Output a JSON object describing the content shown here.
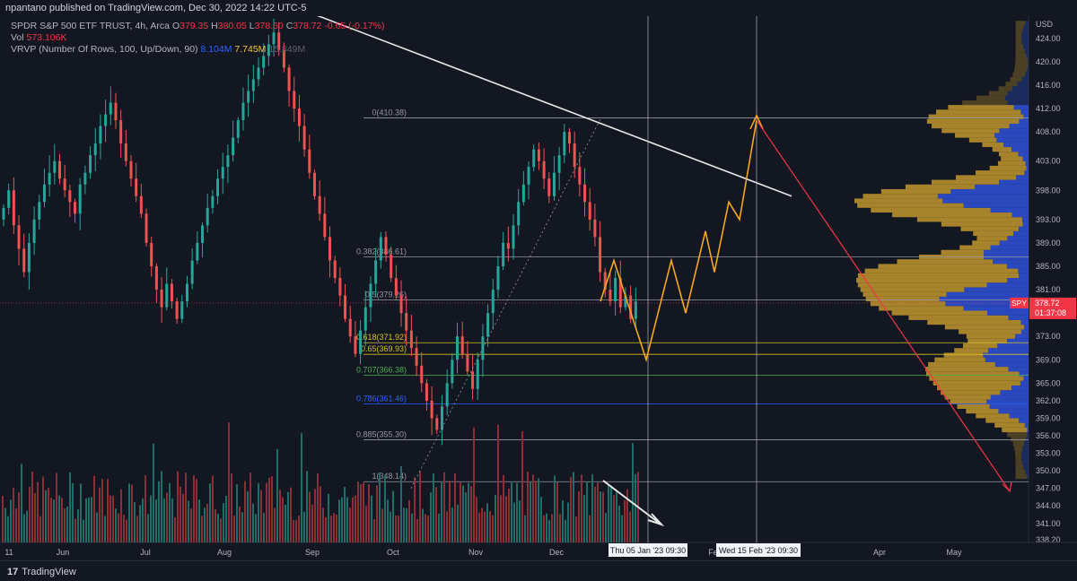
{
  "header": {
    "published": "npantano published on TradingView.com, Dec 30, 2022 14:22 UTC-5"
  },
  "legend": {
    "symbol": "SPDR S&P 500 ETF TRUST, 4h, Arca",
    "o_label": "O",
    "o": "379.35",
    "h_label": "H",
    "h": "380.05",
    "l_label": "L",
    "l": "378.60",
    "c_label": "C",
    "c": "378.72",
    "change": "-0.65 (-0.17%)",
    "vol_label": "Vol",
    "vol": "573.106K",
    "vrvp_label": "VRVP (Number Of Rows, 100, Up/Down, 90)",
    "vrvp_up": "8.104M",
    "vrvp_down": "7.745M",
    "vrvp_total": "15.849M"
  },
  "footer": {
    "brand": "TradingView",
    "logo_mark": "17"
  },
  "colors": {
    "background": "#131722",
    "up": "#26a69a",
    "down": "#ef5350",
    "vol_up": "#1f6d66",
    "vol_down": "#8c2f35",
    "vp_up": "#2d4fcf",
    "vp_down": "#b8902c",
    "trendline": "#e8e8e8",
    "projection": "#f5a623",
    "target": "#f23645"
  },
  "chart_data": {
    "type": "candlestick",
    "symbol": "SPY",
    "timeframe": "4h",
    "y_currency": "USD",
    "ylim": [
      338.2,
      427.5
    ],
    "y_ticks": [
      "424.00",
      "420.00",
      "416.00",
      "412.00",
      "408.00",
      "403.00",
      "398.00",
      "393.00",
      "389.00",
      "385.00",
      "381.00",
      "377.00",
      "373.00",
      "369.00",
      "365.00",
      "362.00",
      "359.00",
      "356.00",
      "353.00",
      "350.00",
      "347.00",
      "344.00",
      "341.00",
      "338.20"
    ],
    "x_ticks": [
      "11",
      "Jun",
      "Jul",
      "Aug",
      "Sep",
      "Oct",
      "Nov",
      "Dec",
      "Feb",
      "Apr",
      "May"
    ],
    "last_price": {
      "symbol": "SPY",
      "value": "378.72",
      "countdown": "01:37:08"
    },
    "crosshair_labels": [
      "Thu 05 Jan '23   09:30",
      "Wed 15 Feb '23   09:30"
    ],
    "fib_levels": [
      {
        "ratio": "0",
        "price": "410.38"
      },
      {
        "ratio": "0.382",
        "price": "386.61"
      },
      {
        "ratio": "0.5",
        "price": "379.26"
      },
      {
        "ratio": "0.618",
        "price": "371.92"
      },
      {
        "ratio": "0.65",
        "price": "369.93"
      },
      {
        "ratio": "0.707",
        "price": "366.38"
      },
      {
        "ratio": "0.786",
        "price": "361.46"
      },
      {
        "ratio": "0.885",
        "price": "355.30"
      },
      {
        "ratio": "1",
        "price": "348.14"
      }
    ],
    "closes": [
      395,
      398,
      392,
      388,
      384,
      389,
      393,
      396,
      399,
      401,
      403,
      400,
      398,
      396,
      394,
      399,
      401,
      404,
      406,
      409,
      411,
      413,
      410,
      406,
      403,
      400,
      397,
      394,
      389,
      385,
      381,
      378,
      382,
      379,
      376,
      379,
      382,
      386,
      389,
      392,
      395,
      397,
      400,
      402,
      404,
      407,
      410,
      413,
      415,
      417,
      419,
      421,
      423,
      425,
      422,
      419,
      415,
      412,
      409,
      405,
      401,
      397,
      394,
      390,
      386,
      383,
      380,
      376,
      373,
      370,
      374,
      378,
      382,
      386,
      390,
      387,
      383,
      380,
      377,
      374,
      371,
      368,
      365,
      362,
      359,
      357,
      361,
      365,
      369,
      373,
      370,
      367,
      364,
      369,
      373,
      377,
      381,
      385,
      389,
      388,
      392,
      396,
      399,
      402,
      405,
      403,
      400,
      397,
      401,
      404,
      408,
      406,
      402,
      399,
      396,
      393,
      390,
      384,
      381,
      379,
      383,
      378,
      380,
      376,
      379
    ],
    "drawings": {
      "white_trendline": [
        [
          "May 16",
          428.0
        ],
        [
          "Dec 24",
          397.0
        ]
      ],
      "orange_projection": [
        379,
        386,
        369,
        386,
        377,
        391,
        384,
        396,
        393,
        410
      ],
      "red_target": [
        [
          410.0
        ],
        [
          346.5
        ]
      ]
    }
  }
}
